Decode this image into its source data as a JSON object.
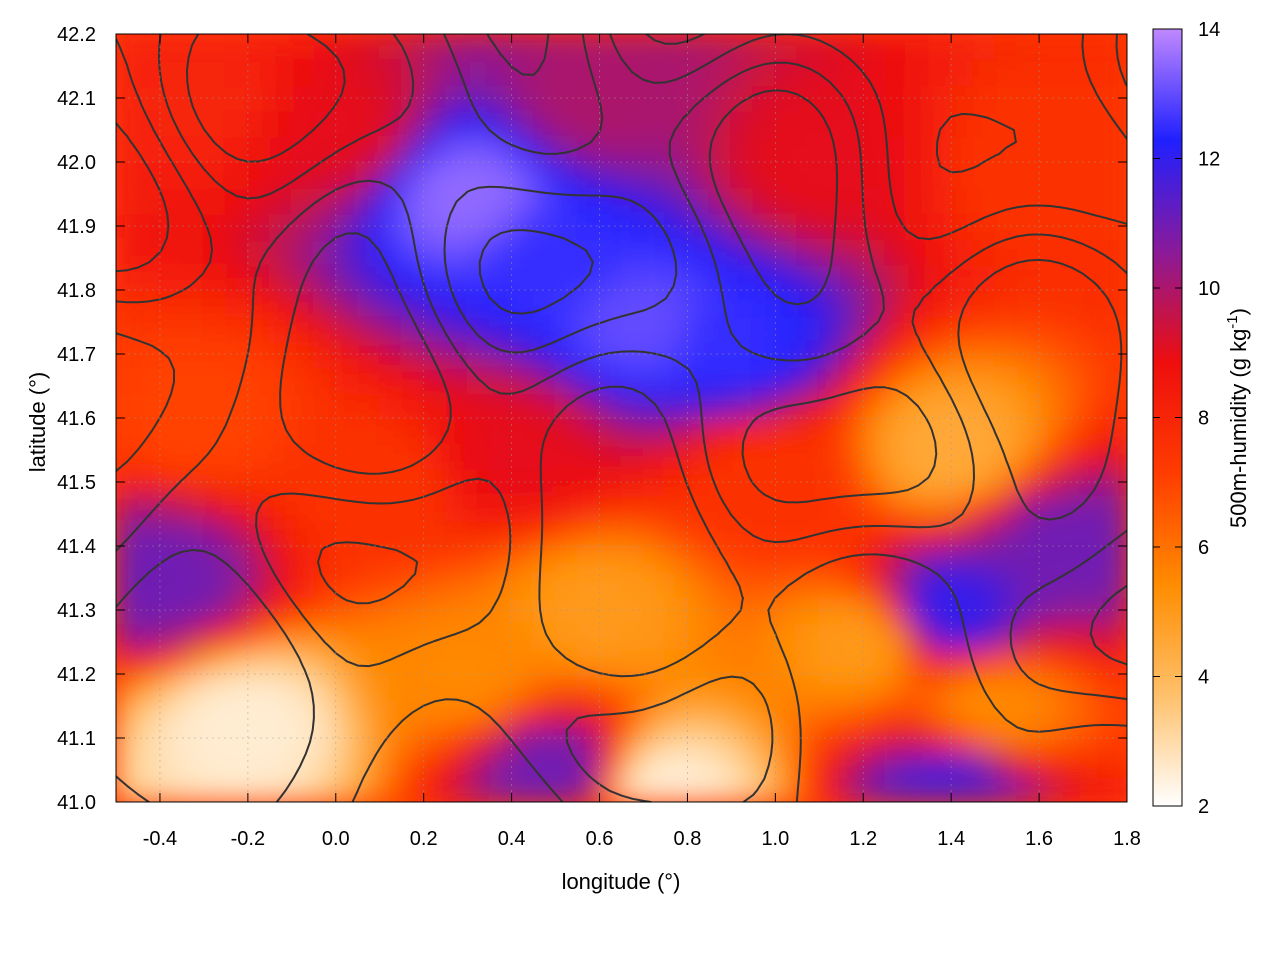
{
  "chart_data": {
    "type": "heatmap",
    "xlabel": "longitude (°)",
    "ylabel": "latitude (°)",
    "colorbar_label": {
      "main": "500m-humidity (g kg",
      "superscript": "-1",
      "close": ")"
    },
    "xlim": [
      -0.5,
      1.8
    ],
    "ylim": [
      41.0,
      42.2
    ],
    "clim": [
      2,
      14
    ],
    "x_ticks": [
      -0.4,
      -0.2,
      0.0,
      0.2,
      0.4,
      0.6,
      0.8,
      1.0,
      1.2,
      1.4,
      1.6,
      1.8
    ],
    "x_tick_labels": [
      "-0.4",
      "-0.2",
      "0.0",
      "0.2",
      "0.4",
      "0.6",
      "0.8",
      "1.0",
      "1.2",
      "1.4",
      "1.6",
      "1.8"
    ],
    "y_ticks": [
      41.0,
      41.1,
      41.2,
      41.3,
      41.4,
      41.5,
      41.6,
      41.7,
      41.8,
      41.9,
      42.0,
      42.1,
      42.2
    ],
    "y_tick_labels": [
      "41.0",
      "41.1",
      "41.2",
      "41.3",
      "41.4",
      "41.5",
      "41.6",
      "41.7",
      "41.8",
      "41.9",
      "42.0",
      "42.1",
      "42.2"
    ],
    "c_ticks": [
      2,
      4,
      6,
      8,
      10,
      12,
      14
    ],
    "c_tick_labels": [
      "2",
      "4",
      "6",
      "8",
      "10",
      "12",
      "14"
    ],
    "colormap": [
      "#ffffff",
      "#ffc06a",
      "#ff8c00",
      "#ff3c00",
      "#ee0e0e",
      "#8a1a9a",
      "#2020ff",
      "#c088ff"
    ],
    "grid": true,
    "contours": "terrain elevation (dark grey lines)",
    "field_samples": [
      {
        "lon": -0.3,
        "lat": 42.1,
        "value": 8
      },
      {
        "lon": 0.0,
        "lat": 42.05,
        "value": 9
      },
      {
        "lon": 0.3,
        "lat": 41.95,
        "value": 13.5
      },
      {
        "lon": 0.5,
        "lat": 41.85,
        "value": 12.5
      },
      {
        "lon": 0.7,
        "lat": 41.75,
        "value": 13
      },
      {
        "lon": 0.9,
        "lat": 41.72,
        "value": 12.5
      },
      {
        "lon": 0.6,
        "lat": 42.1,
        "value": 10
      },
      {
        "lon": 1.1,
        "lat": 42.0,
        "value": 9
      },
      {
        "lon": 1.6,
        "lat": 42.0,
        "value": 7.5
      },
      {
        "lon": -0.3,
        "lat": 41.6,
        "value": 7
      },
      {
        "lon": 0.1,
        "lat": 41.5,
        "value": 7.5
      },
      {
        "lon": 0.4,
        "lat": 41.55,
        "value": 9
      },
      {
        "lon": 1.0,
        "lat": 41.5,
        "value": 7.5
      },
      {
        "lon": 1.4,
        "lat": 41.55,
        "value": 4.5
      },
      {
        "lon": -0.4,
        "lat": 41.35,
        "value": 11
      },
      {
        "lon": -0.2,
        "lat": 41.12,
        "value": 2.5
      },
      {
        "lon": 0.3,
        "lat": 41.2,
        "value": 5.5
      },
      {
        "lon": 0.6,
        "lat": 41.3,
        "value": 5
      },
      {
        "lon": 0.75,
        "lat": 41.02,
        "value": 2.5
      },
      {
        "lon": 0.5,
        "lat": 41.05,
        "value": 11
      },
      {
        "lon": 1.2,
        "lat": 41.25,
        "value": 5
      },
      {
        "lon": 1.4,
        "lat": 41.3,
        "value": 12
      },
      {
        "lon": 1.65,
        "lat": 41.4,
        "value": 11
      },
      {
        "lon": 1.5,
        "lat": 41.15,
        "value": 5.5
      },
      {
        "lon": 1.4,
        "lat": 41.02,
        "value": 11.5
      }
    ]
  }
}
